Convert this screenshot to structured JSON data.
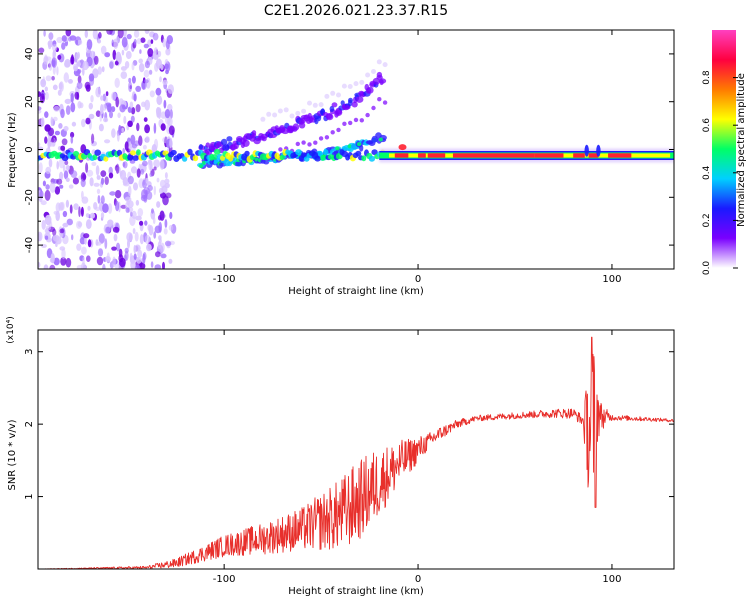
{
  "title": "C2E1.2026.021.23.37.R15",
  "colors": {
    "snr_line": "#e8302c",
    "frame": "#000000"
  },
  "chart_data": [
    {
      "type": "heatmap",
      "name": "spectrogram",
      "xlabel": "Height of straight line (km)",
      "ylabel": "Frequency (Hz)",
      "xlim": [
        -196,
        132
      ],
      "ylim": [
        -50,
        50
      ],
      "xticks": [
        -100,
        0,
        100
      ],
      "yticks": [
        -40,
        -20,
        0,
        20,
        40
      ],
      "xtick_labels": [
        "-100",
        "0",
        "100"
      ],
      "ytick_labels": [
        "-40",
        "-20",
        "0",
        "20",
        "40"
      ],
      "colorbar": {
        "label": "Normalized spectral amplitude",
        "range": [
          0,
          1
        ],
        "ticks": [
          0.0,
          0.2,
          0.4,
          0.6,
          0.8
        ],
        "tick_labels": [
          "0.0",
          "0.2",
          "0.4",
          "0.6",
          "0.8"
        ],
        "colormap": [
          "#ffffff",
          "#7a00ff",
          "#1a1aff",
          "#00d0ff",
          "#00ff66",
          "#ffff00",
          "#ff7a00",
          "#ff0040",
          "#ff40c0"
        ]
      },
      "features": {
        "main_line_frequency_hz": -2.5,
        "upper_branch": [
          [
            -110,
            0
          ],
          [
            -80,
            6
          ],
          [
            -50,
            14
          ],
          [
            -30,
            22
          ],
          [
            -20,
            30
          ]
        ],
        "lower_branch": [
          [
            -110,
            -6
          ],
          [
            -80,
            -4
          ],
          [
            -50,
            -2
          ],
          [
            -30,
            2
          ],
          [
            -20,
            5
          ]
        ]
      }
    },
    {
      "type": "line",
      "name": "snr",
      "xlabel": "Height of straight line (km)",
      "ylabel": "SNR (10 * v/v)",
      "y_multiplier": "(x10⁴)",
      "xlim": [
        -196,
        132
      ],
      "ylim": [
        0,
        3.3
      ],
      "xticks": [
        -100,
        0,
        100
      ],
      "yticks": [
        1,
        2,
        3
      ],
      "xtick_labels": [
        "-100",
        "0",
        "100"
      ],
      "ytick_labels": [
        "1",
        "2",
        "3"
      ],
      "series": [
        {
          "name": "SNR",
          "envelope_x": [
            -196,
            -140,
            -125,
            -110,
            -100,
            -80,
            -60,
            -40,
            -30,
            -20,
            -10,
            0,
            10,
            20,
            30,
            50,
            70,
            80,
            85,
            88,
            90,
            92,
            95,
            110,
            132
          ],
          "envelope_y": [
            0,
            0.02,
            0.08,
            0.22,
            0.32,
            0.42,
            0.55,
            0.75,
            0.95,
            1.2,
            1.45,
            1.65,
            1.85,
            2.0,
            2.08,
            2.12,
            2.15,
            2.15,
            2.05,
            1.9,
            2.0,
            2.2,
            2.1,
            2.08,
            2.05
          ],
          "noise_x": [
            -196,
            -140,
            -120,
            -100,
            -80,
            -60,
            -45,
            -35,
            -25,
            -15,
            -5,
            5,
            20,
            30,
            60,
            85,
            88,
            90,
            92,
            94,
            100,
            132
          ],
          "noise_amplitude": [
            0,
            0.02,
            0.08,
            0.15,
            0.22,
            0.3,
            0.45,
            0.55,
            0.55,
            0.4,
            0.25,
            0.12,
            0.06,
            0.04,
            0.05,
            0.08,
            0.9,
            1.2,
            0.6,
            0.2,
            0.04,
            0.02
          ],
          "peak": {
            "x": 89.5,
            "y": 3.2
          },
          "trough": {
            "x": 91.5,
            "y": 0.85
          }
        }
      ]
    }
  ]
}
